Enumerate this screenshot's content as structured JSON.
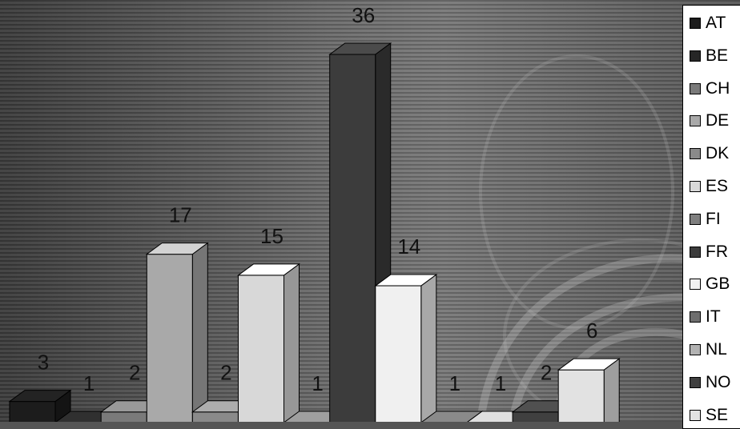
{
  "chart_data": {
    "type": "bar",
    "style": "3d-columns",
    "categories": [
      "AT",
      "BE",
      "CH",
      "DE",
      "DK",
      "ES",
      "FI",
      "FR",
      "GB",
      "IT",
      "NL",
      "NO",
      "SE"
    ],
    "values": [
      3,
      1,
      2,
      17,
      2,
      15,
      1,
      36,
      14,
      1,
      1,
      2,
      6
    ],
    "colors": [
      "#1c1c1c",
      "#262626",
      "#7a7a7a",
      "#a9a9a9",
      "#8a8a8a",
      "#d8d8d8",
      "#7f7f7f",
      "#3c3c3c",
      "#f0f0f0",
      "#6e6e6e",
      "#b2b2b2",
      "#404040",
      "#e2e2e2"
    ],
    "legend": {
      "placement": "right",
      "entries": [
        "AT",
        "BE",
        "CH",
        "DE",
        "DK",
        "ES",
        "FI",
        "FR",
        "GB",
        "IT",
        "NL",
        "NO",
        "SE"
      ]
    },
    "data_labels": [
      "3",
      "1",
      "2",
      "17",
      "2",
      "15",
      "1",
      "36",
      "14",
      "1",
      "1",
      "2",
      "6"
    ],
    "grid": false,
    "ylim": [
      0,
      36
    ]
  }
}
